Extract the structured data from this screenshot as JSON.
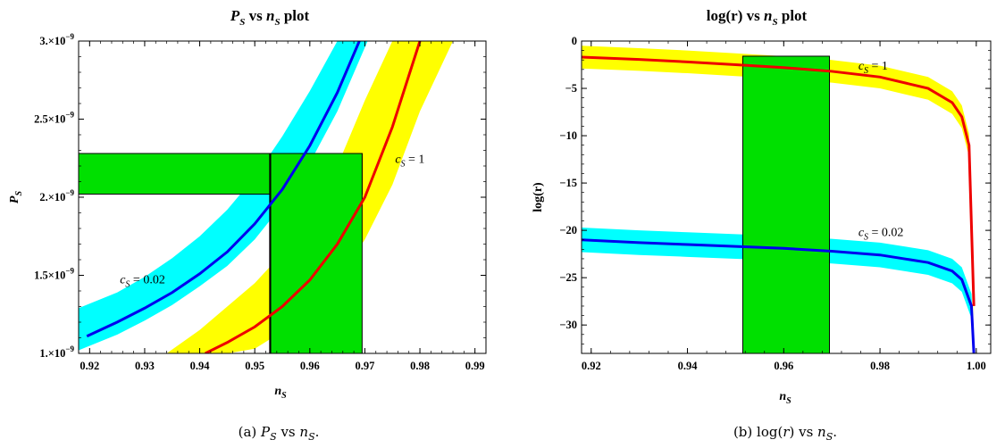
{
  "chart_data": [
    {
      "type": "line",
      "title": "P_S vs n_S plot",
      "title_main": "P",
      "title_sub": "S",
      "title_mid": " vs ",
      "title_main2": "n",
      "title_sub2": "S",
      "title_tail": " plot",
      "xlabel": "n_S",
      "xlabel_main": "n",
      "xlabel_sub": "S",
      "ylabel": "P_S",
      "ylabel_main": "P",
      "ylabel_sub": "S",
      "xlim": [
        0.918,
        0.992
      ],
      "ylim": [
        1e-09,
        3e-09
      ],
      "xticks": [
        0.92,
        0.93,
        0.94,
        0.95,
        0.96,
        0.97,
        0.98,
        0.99
      ],
      "xtick_labels": [
        "0.92",
        "0.93",
        "0.94",
        "0.95",
        "0.96",
        "0.97",
        "0.98",
        "0.99"
      ],
      "yticks": [
        1e-09,
        1.5e-09,
        2e-09,
        2.5e-09,
        3e-09
      ],
      "ytick_labels": [
        "1.×10",
        "1.5×10",
        "2.×10",
        "2.5×10",
        "3.×10"
      ],
      "ytick_exponent": "−9",
      "grid": false,
      "observed_bands": [
        {
          "axis": "y",
          "range": [
            2.02e-09,
            2.28e-09
          ],
          "x_extent": [
            0.918,
            0.9695
          ],
          "color": "#00e000"
        },
        {
          "axis": "x",
          "range": [
            0.9528,
            0.9695
          ],
          "y_extent": [
            1e-09,
            2.28e-09
          ],
          "color": "#00e000"
        }
      ],
      "series": [
        {
          "name": "c_S = 0.02",
          "label_main": "c",
          "label_sub": "S",
          "label_tail": " = 0.02",
          "label_at": [
            0.9255,
            1.45e-09
          ],
          "color": "#0000ee",
          "band_color": "#00ffff",
          "x": [
            0.9195,
            0.925,
            0.93,
            0.935,
            0.94,
            0.945,
            0.95,
            0.955,
            0.96,
            0.965,
            0.969
          ],
          "y": [
            1.11e-09,
            1.2e-09,
            1.29e-09,
            1.39e-09,
            1.51e-09,
            1.65e-09,
            1.83e-09,
            2.05e-09,
            2.33e-09,
            2.67e-09,
            3e-09
          ],
          "band_x": [
            0.918,
            0.925,
            0.93,
            0.935,
            0.94,
            0.945,
            0.95,
            0.955,
            0.96,
            0.965,
            0.9705
          ],
          "band_low": [
            1.02e-09,
            1.12e-09,
            1.21e-09,
            1.31e-09,
            1.43e-09,
            1.56e-09,
            1.73e-09,
            1.95e-09,
            2.22e-09,
            2.55e-09,
            3e-09
          ],
          "band_high": [
            1.29e-09,
            1.39e-09,
            1.49e-09,
            1.61e-09,
            1.75e-09,
            1.92e-09,
            2.13e-09,
            2.39e-09,
            2.68e-09,
            3e-09,
            3e-09
          ]
        },
        {
          "name": "c_S = 1",
          "label_main": "c",
          "label_sub": "S",
          "label_tail": " = 1",
          "label_at": [
            0.9755,
            2.22e-09
          ],
          "color": "#ee0000",
          "band_color": "#ffff00",
          "x": [
            0.941,
            0.945,
            0.95,
            0.955,
            0.96,
            0.965,
            0.97,
            0.975,
            0.98
          ],
          "y": [
            1e-09,
            1.07e-09,
            1.17e-09,
            1.3e-09,
            1.47e-09,
            1.7e-09,
            2e-09,
            2.45e-09,
            3e-09
          ],
          "band_x": [
            0.934,
            0.94,
            0.945,
            0.95,
            0.955,
            0.96,
            0.965,
            0.97,
            0.975,
            0.98,
            0.986
          ],
          "band_low": [
            1e-09,
            1e-09,
            1e-09,
            1.03e-09,
            1.14e-09,
            1.28e-09,
            1.47e-09,
            1.73e-09,
            2.08e-09,
            2.55e-09,
            3e-09
          ],
          "band_high": [
            1e-09,
            1.15e-09,
            1.3e-09,
            1.45e-09,
            1.64e-09,
            1.88e-09,
            2.2e-09,
            2.62e-09,
            3e-09,
            3e-09,
            3e-09
          ]
        }
      ],
      "caption_prefix": "(a) ",
      "caption_main": "P",
      "caption_sub": "S",
      "caption_mid": " vs ",
      "caption_main2": "n",
      "caption_sub2": "S",
      "caption_tail": "."
    },
    {
      "type": "line",
      "title": "log(r) vs n_S plot",
      "title_main": "log(r) vs ",
      "title_main2": "n",
      "title_sub2": "S",
      "title_tail": " plot",
      "xlabel": "n_S",
      "xlabel_main": "n",
      "xlabel_sub": "S",
      "ylabel": "log(r)",
      "xlim": [
        0.918,
        1.003
      ],
      "ylim": [
        -33,
        0
      ],
      "xticks": [
        0.92,
        0.94,
        0.96,
        0.98,
        1.0
      ],
      "xtick_labels": [
        "0.92",
        "0.94",
        "0.96",
        "0.98",
        "1.00"
      ],
      "yticks": [
        0,
        -5,
        -10,
        -15,
        -20,
        -25,
        -30
      ],
      "ytick_labels": [
        "0",
        "−5",
        "−10",
        "−15",
        "−20",
        "−25",
        "−30"
      ],
      "grid": false,
      "observed_bands": [
        {
          "axis": "x",
          "range": [
            0.9515,
            0.9695
          ],
          "y_extent": [
            -33,
            -1.6
          ],
          "color": "#00e000"
        }
      ],
      "series": [
        {
          "name": "c_S = 1",
          "label_main": "c",
          "label_sub": "S",
          "label_tail": " = 1",
          "label_at": [
            0.9755,
            -3.0
          ],
          "color": "#ee0000",
          "band_color": "#ffff00",
          "x": [
            0.918,
            0.93,
            0.94,
            0.95,
            0.96,
            0.97,
            0.98,
            0.99,
            0.995,
            0.997,
            0.9985,
            0.9995
          ],
          "y": [
            -1.7,
            -1.95,
            -2.2,
            -2.5,
            -2.8,
            -3.2,
            -3.8,
            -5.0,
            -6.5,
            -8.0,
            -11.0,
            -28.0
          ],
          "band_half_width": 1.2
        },
        {
          "name": "c_S = 0.02",
          "label_main": "c",
          "label_sub": "S",
          "label_tail": " = 0.02",
          "label_at": [
            0.9755,
            -20.6
          ],
          "color": "#0000ee",
          "band_color": "#00ffff",
          "x": [
            0.918,
            0.93,
            0.94,
            0.95,
            0.96,
            0.97,
            0.98,
            0.99,
            0.995,
            0.997,
            0.999,
            0.9995
          ],
          "y": [
            -21.0,
            -21.3,
            -21.5,
            -21.7,
            -21.9,
            -22.2,
            -22.6,
            -23.4,
            -24.3,
            -25.2,
            -28.0,
            -33.0
          ],
          "band_half_width": 1.3
        }
      ],
      "caption_prefix": "(b) ",
      "caption_main": "log(",
      "caption_it": "r",
      "caption_mid": ") vs ",
      "caption_main2": "n",
      "caption_sub2": "S",
      "caption_tail": "."
    }
  ]
}
